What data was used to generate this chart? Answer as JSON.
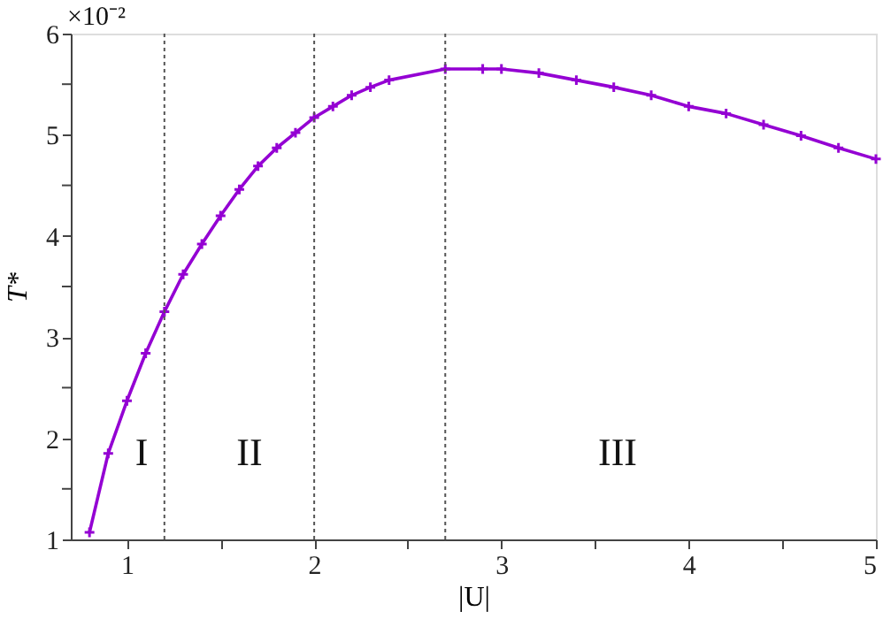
{
  "chart_data": {
    "type": "line",
    "xlabel": "|U|",
    "ylabel": "T*",
    "x": [
      0.8,
      0.9,
      1.0,
      1.1,
      1.2,
      1.3,
      1.4,
      1.5,
      1.6,
      1.7,
      1.8,
      1.9,
      2.0,
      2.1,
      2.2,
      2.3,
      2.4,
      2.7,
      2.9,
      3.0,
      3.2,
      3.4,
      3.6,
      3.8,
      4.0,
      4.2,
      4.4,
      4.6,
      4.8,
      5.0
    ],
    "series": [
      {
        "color": "#9400d3",
        "values": [
          1.07,
          1.85,
          2.37,
          2.84,
          3.25,
          3.62,
          3.92,
          4.2,
          4.46,
          4.69,
          4.87,
          5.02,
          5.17,
          5.28,
          5.39,
          5.47,
          5.54,
          5.65,
          5.65,
          5.65,
          5.61,
          5.54,
          5.47,
          5.39,
          5.28,
          5.21,
          5.1,
          4.99,
          4.87,
          4.76
        ]
      }
    ],
    "xlim": [
      0.7,
      5
    ],
    "xticks": [
      1,
      {
        "value": 1.5,
        "label": null
      },
      2,
      {
        "value": 2.5,
        "label": null
      },
      3,
      {
        "value": 3.5,
        "label": null
      },
      4,
      {
        "value": 4.5,
        "label": null
      },
      5
    ],
    "ylim": [
      1,
      6
    ],
    "yticks": [
      1,
      {
        "value": 1.5,
        "label": null
      },
      2,
      {
        "value": 2.5,
        "label": null
      },
      3,
      {
        "value": 3.5,
        "label": null
      },
      4,
      {
        "value": 4.5,
        "label": null
      },
      5,
      {
        "value": 5.5,
        "label": null
      },
      6
    ],
    "ref_lines": [
      {
        "axis": "x",
        "value": 1.2,
        "color": "#555555",
        "line_style": "dotted"
      },
      {
        "axis": "x",
        "value": 2.0,
        "color": "#555555",
        "line_style": "dotted"
      },
      {
        "axis": "x",
        "value": 2.7,
        "color": "#555555",
        "line_style": "dotted"
      }
    ],
    "annotations": [
      "I",
      "II",
      "III",
      "×10⁻²"
    ],
    "marker": "cross",
    "line_style": "solid",
    "grid": false
  }
}
